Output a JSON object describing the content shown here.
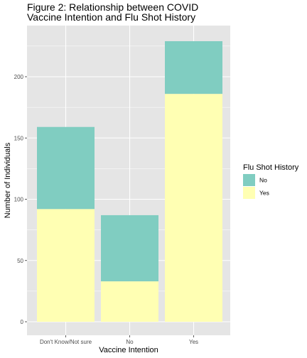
{
  "chart_data": {
    "type": "bar",
    "stacked": true,
    "title_lines": [
      "Figure 2: Relationship between COVID",
      "Vaccine Intention and Flu Shot History"
    ],
    "xlabel": "Vaccine Intention",
    "ylabel": "Number of Individuals",
    "categories": [
      "Don't Know/Not sure",
      "No",
      "Yes"
    ],
    "series": [
      {
        "name": "Yes",
        "color": "#FFFFB3",
        "values": [
          92,
          33,
          186
        ]
      },
      {
        "name": "No",
        "color": "#80CDC1",
        "values": [
          67,
          54,
          43
        ]
      }
    ],
    "ylim": [
      0,
      230
    ],
    "yticks": [
      0,
      50,
      100,
      150,
      200
    ],
    "grid": true,
    "legend": {
      "title": "Flu Shot History",
      "position": "right",
      "entries": [
        {
          "label": "No",
          "color": "#80CDC1"
        },
        {
          "label": "Yes",
          "color": "#FFFFB3"
        }
      ]
    },
    "panel_background": "#E5E5E5",
    "grid_color": "#FFFFFF"
  }
}
